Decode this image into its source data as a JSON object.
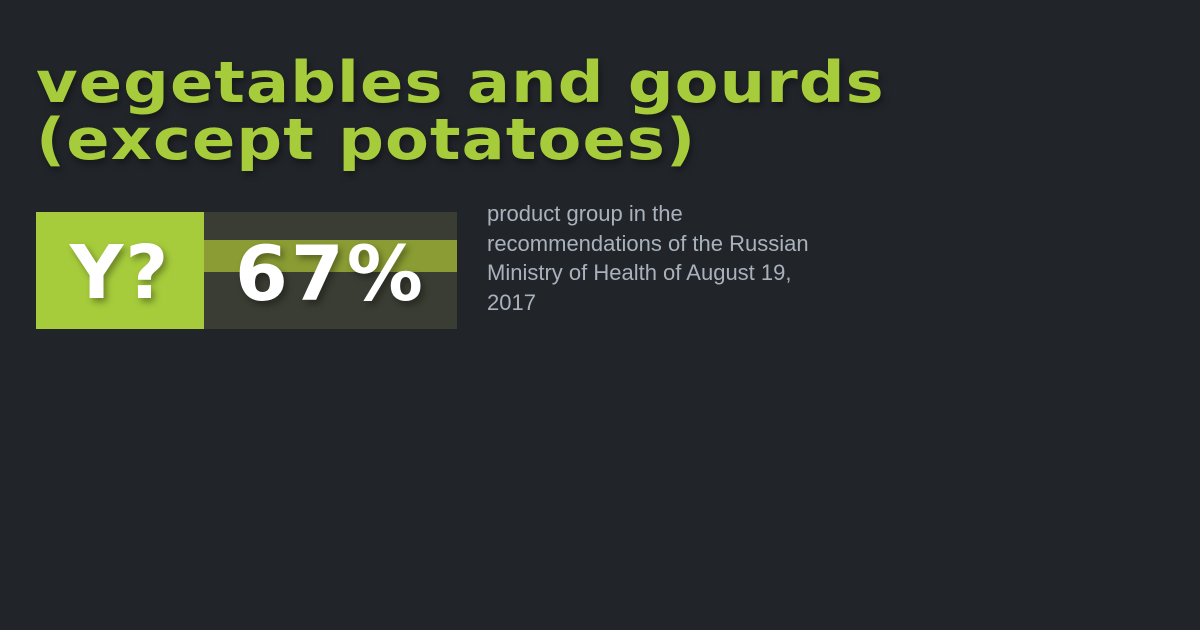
{
  "card": {
    "title": "vegetables and gourds\n(except potatoes)",
    "subtitle": "product group in the\nrecommendations of the Russian\nMinistry of Health of August 19,\n2017",
    "stat": {
      "logo_label": "Y?",
      "value_label": "67%",
      "percent": 67
    },
    "colors": {
      "background": "#212429",
      "accent": "#a6cc3c",
      "stripe": "#8a9c33",
      "value_box": "#3a3d33",
      "subtitle_text": "#a9b2bc",
      "value_text": "#ffffff"
    }
  }
}
